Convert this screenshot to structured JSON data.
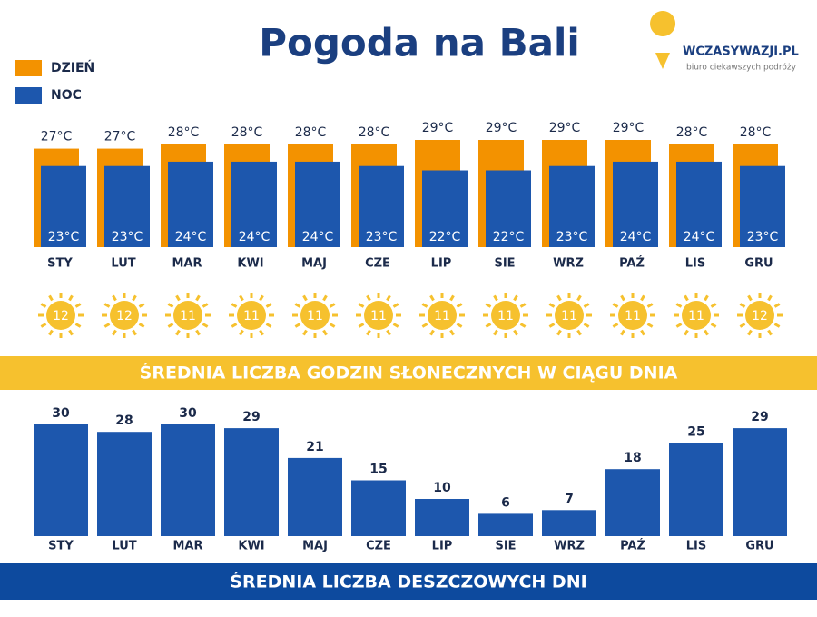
{
  "title": "Pogoda na Bali",
  "logo": {
    "name": "WCZASYWAZJI.PL",
    "tagline": "biuro ciekawszych podróży"
  },
  "chart_data": [
    {
      "type": "bar",
      "categories": [
        "STY",
        "LUT",
        "MAR",
        "KWI",
        "MAJ",
        "CZE",
        "LIP",
        "SIE",
        "WRZ",
        "PAŹ",
        "LIS",
        "GRU"
      ],
      "series": [
        {
          "name": "DZIEŃ",
          "color": "#f39200",
          "values": [
            27,
            27,
            28,
            28,
            28,
            28,
            29,
            29,
            29,
            29,
            28,
            28
          ],
          "value_labels": [
            "27°C",
            "27°C",
            "28°C",
            "28°C",
            "28°C",
            "28°C",
            "29°C",
            "29°C",
            "29°C",
            "29°C",
            "28°C",
            "28°C"
          ]
        },
        {
          "name": "NOC",
          "color": "#1d57ad",
          "values": [
            23,
            23,
            24,
            24,
            24,
            23,
            22,
            22,
            23,
            24,
            24,
            23
          ],
          "value_labels": [
            "23°C",
            "23°C",
            "24°C",
            "24°C",
            "24°C",
            "23°C",
            "22°C",
            "22°C",
            "23°C",
            "24°C",
            "24°C",
            "23°C"
          ]
        }
      ],
      "legend": "top-left"
    },
    {
      "type": "pictogram",
      "title": "ŚREDNIA LICZBA GODZIN SŁONECZNYCH W CIĄGU DNIA",
      "color": "#f6c12e",
      "values": [
        12,
        12,
        11,
        11,
        11,
        11,
        11,
        11,
        11,
        11,
        11,
        12
      ]
    },
    {
      "type": "bar",
      "title": "ŚREDNIA LICZBA DESZCZOWYCH DNI",
      "color": "#1d57ad",
      "categories": [
        "STY",
        "LUT",
        "MAR",
        "KWI",
        "MAJ",
        "CZE",
        "LIP",
        "SIE",
        "WRZ",
        "PAŹ",
        "LIS",
        "GRU"
      ],
      "values": [
        30,
        28,
        30,
        29,
        21,
        15,
        10,
        6,
        7,
        18,
        25,
        29
      ]
    }
  ]
}
